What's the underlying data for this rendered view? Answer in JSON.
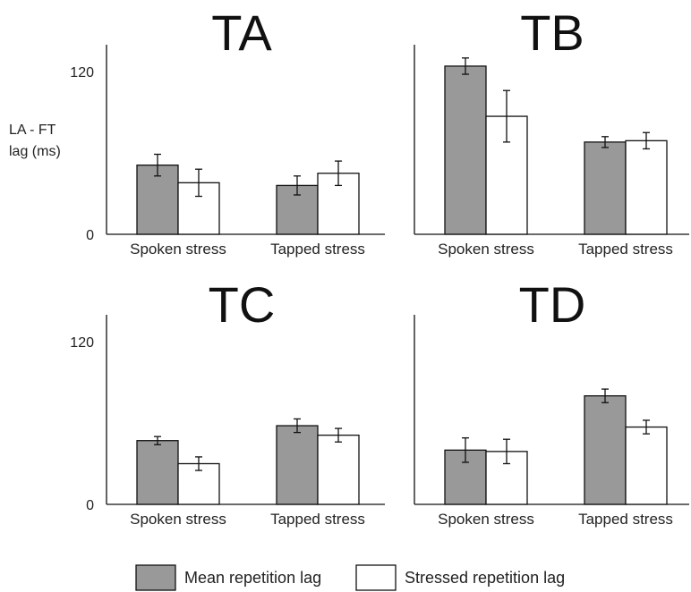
{
  "figure": {
    "ylabel_lines": [
      "LA - FT",
      "lag (ms)"
    ],
    "legend": [
      {
        "label": "Mean repetition lag",
        "color": "#999999"
      },
      {
        "label": "Stressed repetition lag",
        "color": "#ffffff"
      }
    ]
  },
  "chart_data": [
    {
      "type": "bar",
      "title": "TA",
      "categories": [
        "Spoken stress",
        "Tapped stress"
      ],
      "series": [
        {
          "name": "Mean repetition lag",
          "values": [
            51,
            36
          ],
          "errors": [
            8,
            7
          ]
        },
        {
          "name": "Stressed repetition lag",
          "values": [
            38,
            45
          ],
          "errors": [
            10,
            9
          ]
        }
      ],
      "yticks": [
        0,
        120
      ],
      "ylim": [
        0,
        140
      ]
    },
    {
      "type": "bar",
      "title": "TB",
      "categories": [
        "Spoken stress",
        "Tapped stress"
      ],
      "series": [
        {
          "name": "Mean repetition lag",
          "values": [
            124,
            68
          ],
          "errors": [
            6,
            4
          ]
        },
        {
          "name": "Stressed repetition lag",
          "values": [
            87,
            69
          ],
          "errors": [
            19,
            6
          ]
        }
      ],
      "yticks": [],
      "ylim": [
        0,
        140
      ]
    },
    {
      "type": "bar",
      "title": "TC",
      "categories": [
        "Spoken stress",
        "Tapped stress"
      ],
      "series": [
        {
          "name": "Mean repetition lag",
          "values": [
            47,
            58
          ],
          "errors": [
            3,
            5
          ]
        },
        {
          "name": "Stressed repetition lag",
          "values": [
            30,
            51
          ],
          "errors": [
            5,
            5
          ]
        }
      ],
      "yticks": [
        0,
        120
      ],
      "ylim": [
        0,
        140
      ]
    },
    {
      "type": "bar",
      "title": "TD",
      "categories": [
        "Spoken stress",
        "Tapped stress"
      ],
      "series": [
        {
          "name": "Mean repetition lag",
          "values": [
            40,
            80
          ],
          "errors": [
            9,
            5
          ]
        },
        {
          "name": "Stressed repetition lag",
          "values": [
            39,
            57
          ],
          "errors": [
            9,
            5
          ]
        }
      ],
      "yticks": [],
      "ylim": [
        0,
        140
      ]
    }
  ]
}
